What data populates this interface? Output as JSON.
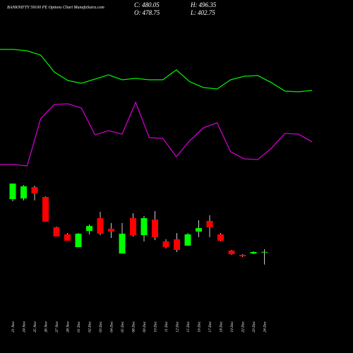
{
  "chart_data": {
    "type": "candlestick",
    "title": "BANKNIFTY 59100 PE Options Chart MunafaSutra.com",
    "stats": [
      {
        "label": "C:",
        "value": 480.05
      },
      {
        "label": "H:",
        "value": 496.35
      },
      {
        "label": "O:",
        "value": 478.75
      },
      {
        "label": "L:",
        "value": 402.75
      }
    ],
    "categories": [
      "21 Nov",
      "24 Nov",
      "25 Nov",
      "26 Nov",
      "27 Nov",
      "28 Nov",
      "01 Dec",
      "02 Dec",
      "03 Dec",
      "04 Dec",
      "05 Dec",
      "08 Dec",
      "09 Dec",
      "10 Dec",
      "11 Dec",
      "12 Dec",
      "15 Dec",
      "16 Dec",
      "17 Dec",
      "18 Dec",
      "19 Dec",
      "22 Dec",
      "23 Dec",
      "24 Dec"
    ],
    "open": [
      802,
      806,
      875,
      815,
      630,
      587,
      509,
      608,
      686,
      621,
      470,
      686,
      582,
      677,
      544,
      557,
      518,
      604,
      669,
      587,
      488,
      462,
      470,
      478.75
    ],
    "high": [
      897,
      888,
      884,
      819,
      634,
      595,
      595,
      647,
      725,
      656,
      656,
      716,
      699,
      729,
      557,
      595,
      595,
      673,
      703,
      595,
      492,
      466,
      484,
      496.35
    ],
    "low": [
      789,
      794,
      794,
      664,
      574,
      548,
      509,
      587,
      582,
      565,
      470,
      574,
      544,
      552,
      501,
      479,
      518,
      570,
      570,
      544,
      462,
      449,
      466,
      402.75
    ],
    "close": [
      897,
      880,
      837,
      664,
      574,
      548,
      591,
      638,
      591,
      604,
      591,
      582,
      686,
      570,
      509,
      492,
      587,
      625,
      630,
      548,
      466,
      453,
      479,
      480.05
    ],
    "up_color": "#00ff00",
    "down_color": "#ff0000",
    "ylim": [
      380,
      940
    ],
    "indicators": [
      {
        "color": "#00ee00",
        "ylim": [
          0,
          100
        ],
        "values": [
          90,
          90,
          89,
          86,
          74,
          68,
          66,
          69,
          72,
          68.5,
          69.5,
          68.5,
          68.5,
          75.5,
          67,
          63,
          62,
          68.5,
          71,
          71.5,
          66.5,
          60.5,
          60,
          61
        ]
      },
      {
        "color": "#cc00cc",
        "ylim": [
          0,
          100
        ],
        "values": [
          8.5,
          8.5,
          7.5,
          41,
          51,
          51.5,
          48.5,
          29.5,
          32.5,
          30,
          52.5,
          27.5,
          27,
          14,
          25.5,
          34.5,
          38,
          17.5,
          12.5,
          12,
          20,
          30.5,
          30,
          24.5
        ]
      }
    ]
  }
}
